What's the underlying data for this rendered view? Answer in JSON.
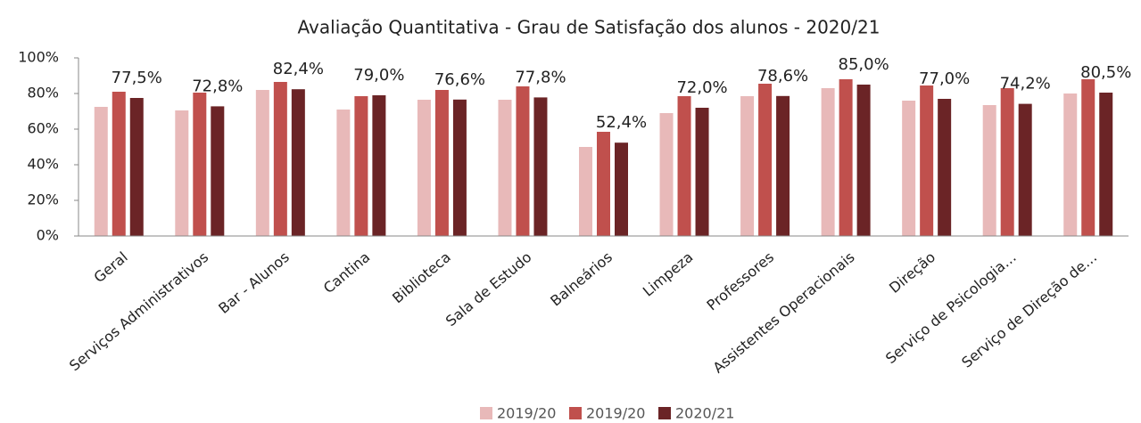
{
  "chart_data": {
    "type": "bar",
    "title": "Avaliação Quantitativa - Grau de Satisfação dos alunos - 2020/21",
    "categories": [
      "Geral",
      "Serviços Administrativos",
      "Bar - Alunos",
      "Cantina",
      "Biblioteca",
      "Sala de Estudo",
      "Balneários",
      "Limpeza",
      "Professores",
      "Assistentes Operacionais",
      "Direção",
      "Serviço de Psicologia…",
      "Serviço de Direção de…"
    ],
    "series": [
      {
        "name": "2019/20",
        "color": "#e8b9b9",
        "values": [
          72.5,
          70.5,
          82,
          71,
          76.5,
          76.5,
          50,
          69,
          78.5,
          83,
          76,
          73.5,
          80
        ]
      },
      {
        "name": "2019/20",
        "color": "#c0504d",
        "values": [
          81,
          80.5,
          86.5,
          78.5,
          82,
          84,
          58.5,
          78.5,
          85.5,
          88,
          84.5,
          83,
          88
        ]
      },
      {
        "name": "2020/21",
        "color": "#6b2426",
        "values": [
          77.5,
          72.8,
          82.4,
          79.0,
          76.6,
          77.8,
          52.4,
          72.0,
          78.6,
          85.0,
          77.0,
          74.2,
          80.5
        ],
        "value_labels": [
          "77,5%",
          "72,8%",
          "82,4%",
          "79,0%",
          "76,6%",
          "77,8%",
          "52,4%",
          "72,0%",
          "78,6%",
          "85,0%",
          "77,0%",
          "74,2%",
          "80,5%"
        ]
      }
    ],
    "ylim": [
      0,
      100
    ],
    "yticks": [
      {
        "value": 0,
        "label": "0%"
      },
      {
        "value": 20,
        "label": "20%"
      },
      {
        "value": 40,
        "label": "40%"
      },
      {
        "value": 60,
        "label": "60%"
      },
      {
        "value": 80,
        "label": "80%"
      },
      {
        "value": 100,
        "label": "100%"
      }
    ],
    "legend": "bottom"
  }
}
